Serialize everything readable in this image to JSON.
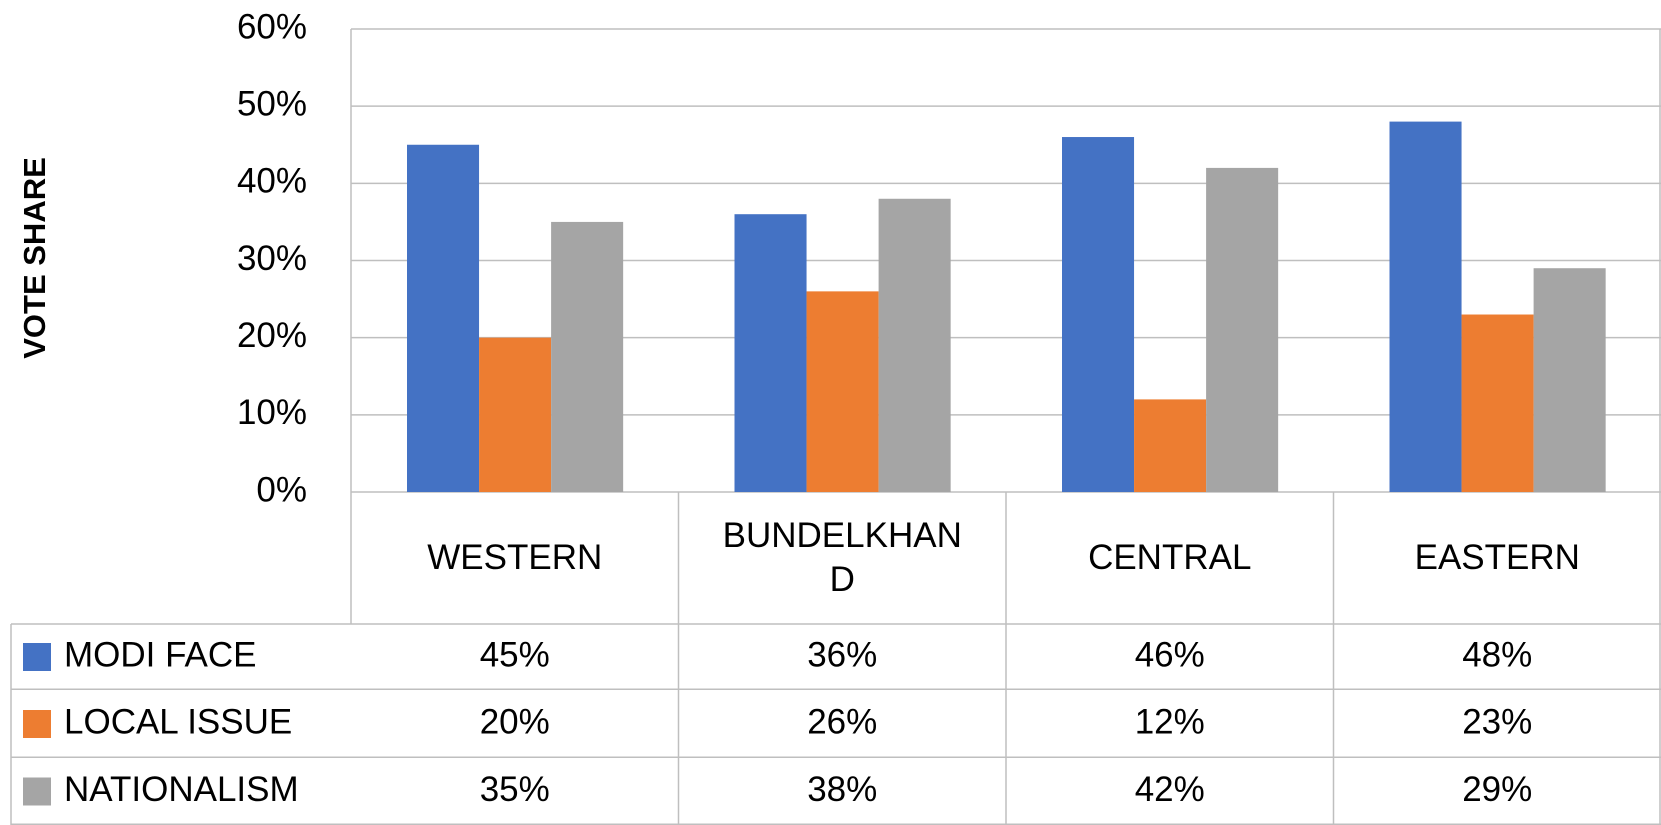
{
  "chart_data": {
    "type": "bar",
    "y_label": "VOTE SHARE",
    "categories": [
      "WESTERN",
      "BUNDELKHAND",
      "CENTRAL",
      "EASTERN"
    ],
    "series": [
      {
        "name": "MODI FACE",
        "color": "#4472c4",
        "values": [
          45,
          36,
          46,
          48
        ],
        "value_labels": [
          "45%",
          "36%",
          "46%",
          "48%"
        ]
      },
      {
        "name": "LOCAL ISSUE",
        "color": "#ed7d31",
        "values": [
          20,
          26,
          12,
          23
        ],
        "value_labels": [
          "20%",
          "26%",
          "12%",
          "23%"
        ]
      },
      {
        "name": "NATIONALISM",
        "color": "#a5a5a5",
        "values": [
          35,
          38,
          42,
          29
        ],
        "value_labels": [
          "35%",
          "38%",
          "42%",
          "29%"
        ]
      }
    ],
    "ylim": [
      0,
      60
    ],
    "yticks": [
      {
        "value": 0,
        "label": "0%"
      },
      {
        "value": 10,
        "label": "10%"
      },
      {
        "value": 20,
        "label": "20%"
      },
      {
        "value": 30,
        "label": "30%"
      },
      {
        "value": 40,
        "label": "40%"
      },
      {
        "value": 50,
        "label": "50%"
      },
      {
        "value": 60,
        "label": "60%"
      }
    ],
    "grid": true
  }
}
